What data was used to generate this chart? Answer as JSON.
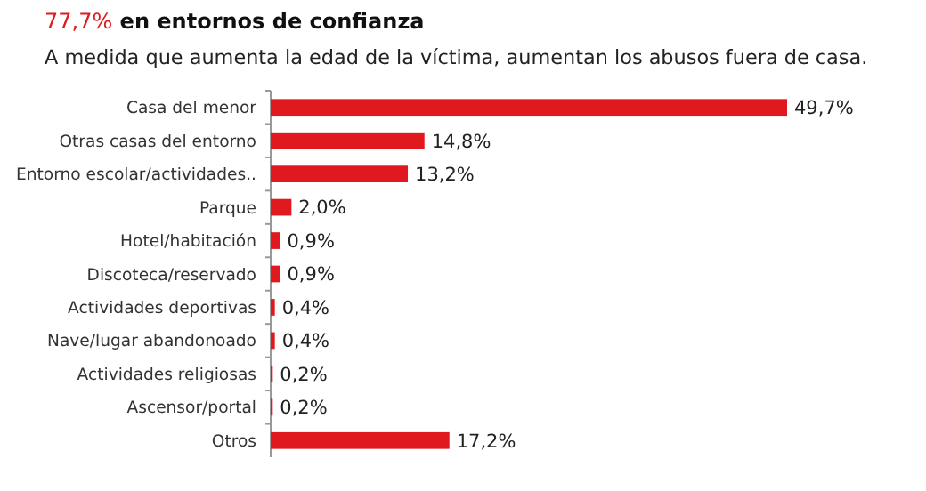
{
  "chart_data": {
    "type": "bar",
    "orientation": "horizontal",
    "title": "77,7% en entornos de confianza",
    "subtitle": "A medida que aumenta la edad de la víctima, aumentan los abusos fuera de casa.",
    "categories": [
      "Casa del menor",
      "Otras casas del entorno",
      "Entorno escolar/actividades..",
      "Parque",
      "Hotel/habitación",
      "Discoteca/reservado",
      "Actividades deportivas",
      "Nave/lugar abandonoado",
      "Actividades religiosas",
      "Ascensor/portal",
      "Otros"
    ],
    "values": [
      49.7,
      14.8,
      13.2,
      2.0,
      0.9,
      0.9,
      0.4,
      0.4,
      0.2,
      0.2,
      17.2
    ],
    "value_labels": [
      "49,7%",
      "14,8%",
      "13,2%",
      "2,0%",
      "0,9%",
      "0,9%",
      "0,4%",
      "0,4%",
      "0,2%",
      "0,2%",
      "17,2%"
    ],
    "color": "#e0191e",
    "grid": false
  }
}
